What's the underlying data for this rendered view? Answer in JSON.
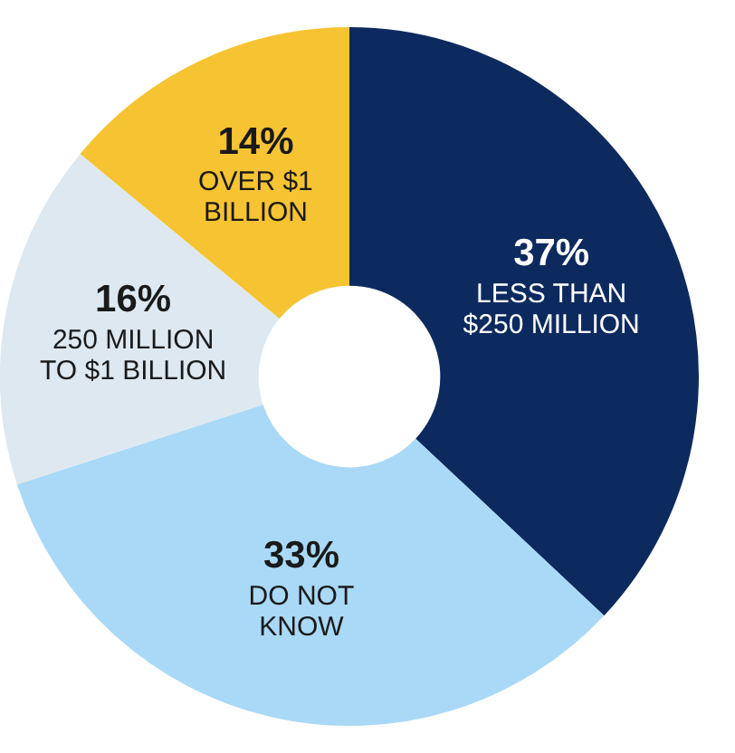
{
  "chart_data": {
    "type": "donut",
    "categories": [
      "LESS THAN\n$250 MILLION",
      "DO NOT\nKNOW",
      "250 MILLION\nTO $1 BILLION",
      "OVER $1\nBILLION"
    ],
    "values": [
      37,
      33,
      16,
      14
    ],
    "colors": [
      "#0d2a5f",
      "#a9d9f7",
      "#dde8f0",
      "#f6c332"
    ],
    "value_labels": [
      "37%",
      "33%",
      "16%",
      "14%"
    ],
    "legend": false
  }
}
